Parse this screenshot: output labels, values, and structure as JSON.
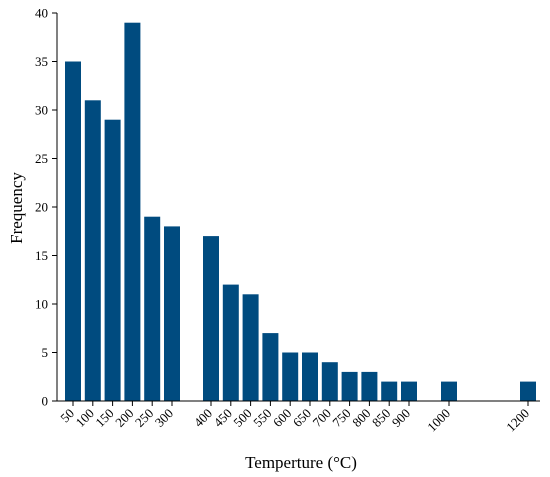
{
  "chart_data": {
    "type": "bar",
    "xlabel": "Temperture (°C)",
    "ylabel": "Frequency",
    "ylim": [
      0,
      40
    ],
    "yticks": [
      "0",
      "5",
      "10",
      "15",
      "20",
      "25",
      "30",
      "35",
      "40"
    ],
    "categories": [
      "50",
      "100",
      "150",
      "200",
      "250",
      "300",
      "400",
      "450",
      "500",
      "550",
      "600",
      "650",
      "700",
      "750",
      "800",
      "850",
      "900",
      "1000",
      "1200"
    ],
    "values": [
      35,
      31,
      29,
      39,
      19,
      18,
      17,
      12,
      11,
      7,
      5,
      5,
      4,
      3,
      3,
      2,
      2,
      2,
      2
    ],
    "bar_color": "#004b7f",
    "grid": false,
    "legend": "none"
  }
}
